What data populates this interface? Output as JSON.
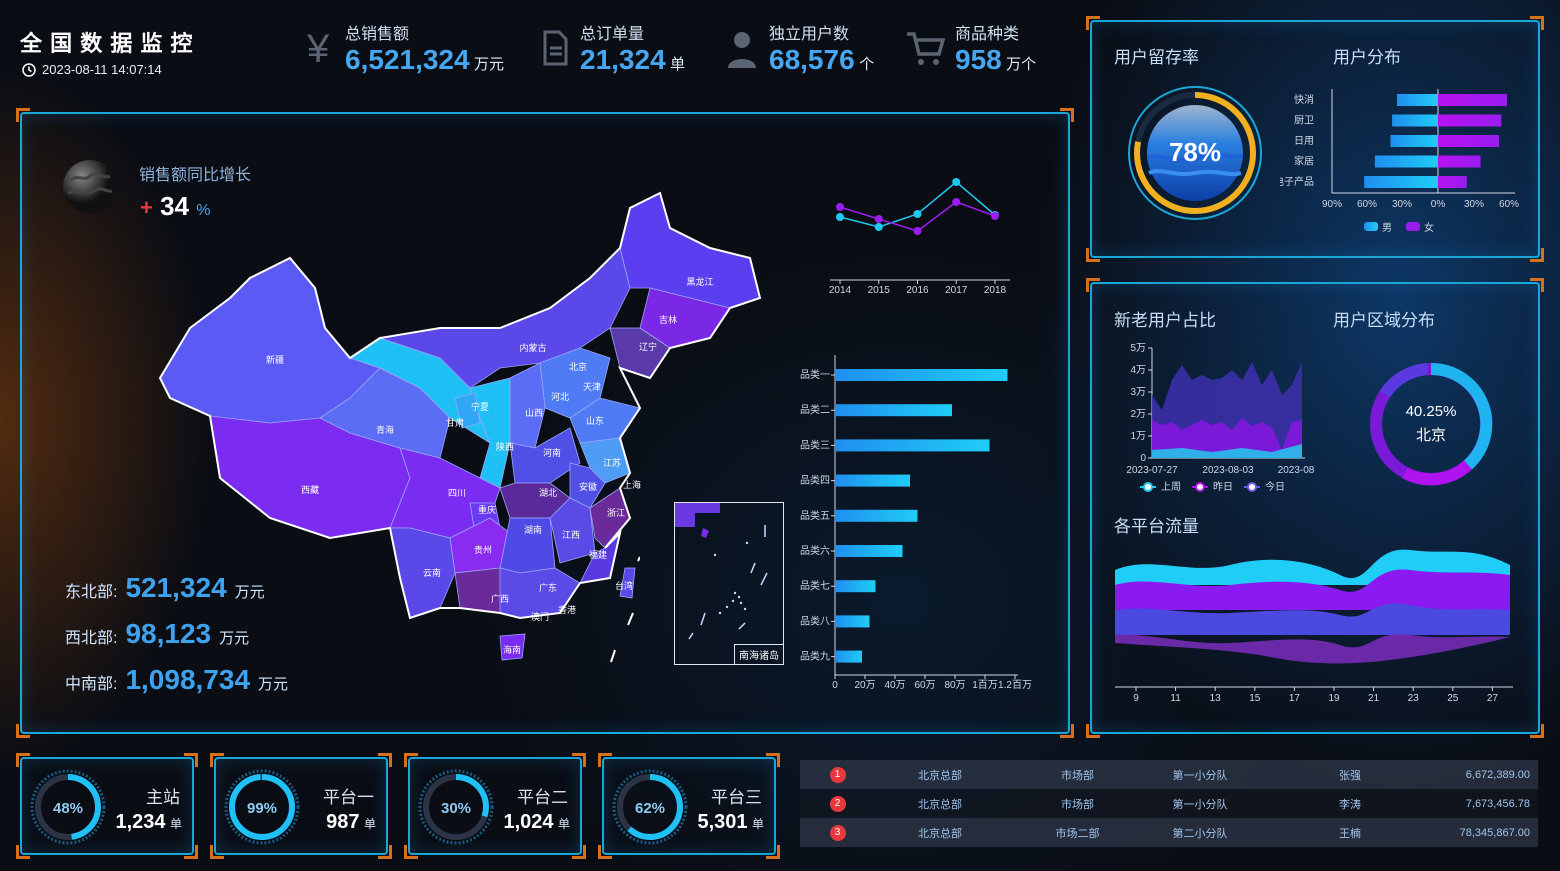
{
  "header": {
    "title": "全 国 数 据 监 控",
    "datetime": "2023-08-11 14:07:14"
  },
  "kpis": [
    {
      "label": "总销售额",
      "value": "6,521,324",
      "unit": "万元",
      "icon": "yen-icon"
    },
    {
      "label": "总订单量",
      "value": "21,324",
      "unit": "单",
      "icon": "document-icon"
    },
    {
      "label": "独立用户数",
      "value": "68,576",
      "unit": "个",
      "icon": "user-icon"
    },
    {
      "label": "商品种类",
      "value": "958",
      "unit": "万个",
      "icon": "cart-icon"
    }
  ],
  "map_panel": {
    "growth_label": "销售额同比增长",
    "growth_sign": "+",
    "growth_value": "34",
    "growth_unit": "%",
    "regions": [
      {
        "label": "东北部:",
        "value": "521,324",
        "unit": "万元"
      },
      {
        "label": "西北部:",
        "value": "98,123",
        "unit": "万元"
      },
      {
        "label": "中南部:",
        "value": "1,098,734",
        "unit": "万元"
      }
    ],
    "provinces": [
      "新疆",
      "西藏",
      "青海",
      "甘肃",
      "宁夏",
      "陕西",
      "内蒙古",
      "黑龙江",
      "吉林",
      "辽宁",
      "北京",
      "天津",
      "河北",
      "山西",
      "山东",
      "河南",
      "江苏",
      "上海",
      "安徽",
      "湖北",
      "四川",
      "重庆",
      "贵州",
      "湖南",
      "江西",
      "浙江",
      "福建",
      "云南",
      "广西",
      "广东",
      "香港",
      "澳门",
      "台湾",
      "海南"
    ],
    "inset_label": "南海诸岛"
  },
  "line_chart": {
    "type": "line",
    "x": [
      "2014",
      "2015",
      "2016",
      "2017",
      "2018"
    ],
    "series": [
      {
        "values": [
          212,
          222,
          209,
          177,
          210
        ],
        "color": "#1ec8f0"
      },
      {
        "values": [
          202,
          214,
          226,
          197,
          211
        ],
        "color": "#9b1df0"
      }
    ]
  },
  "bar_chart": {
    "type": "bar",
    "categories": [
      "品类一",
      "品类二",
      "品类三",
      "品类四",
      "品类五",
      "品类六",
      "品类七",
      "品类八",
      "品类九"
    ],
    "values": [
      1150000,
      780000,
      1030000,
      500000,
      550000,
      450000,
      270000,
      230000,
      180000
    ],
    "xticks": [
      "0",
      "20万",
      "40万",
      "60万",
      "80万",
      "1百万",
      "1.2百万"
    ],
    "xmax": 1200000
  },
  "retention": {
    "title": "用户留存率",
    "value": "78%",
    "fraction": 0.78
  },
  "user_dist": {
    "title": "用户分布",
    "type": "bar",
    "categories": [
      "快消",
      "厨卫",
      "日用",
      "家居",
      "电子产品"
    ],
    "male": [
      50,
      56,
      58,
      77,
      90
    ],
    "female": [
      60,
      55,
      53,
      37,
      25
    ],
    "xticks": [
      "90%",
      "60%",
      "30%",
      "0%",
      "30%",
      "60%"
    ],
    "legend": [
      "男",
      "女"
    ]
  },
  "new_old": {
    "title": "新老用户占比",
    "type": "area",
    "yticks": [
      "0",
      "1万",
      "2万",
      "3万",
      "4万",
      "5万"
    ],
    "xticks": [
      "2023-07-27",
      "2023-08-03",
      "2023-08"
    ],
    "legend": [
      "上周",
      "昨日",
      "今日"
    ]
  },
  "region_dist": {
    "title": "用户区域分布",
    "value": "40.25%",
    "city": "北京"
  },
  "platform_flow": {
    "title": "各平台流量",
    "type": "area",
    "xticks": [
      "9",
      "11",
      "13",
      "15",
      "17",
      "19",
      "21",
      "23",
      "25",
      "27"
    ]
  },
  "gauges": [
    {
      "percent": "48%",
      "fraction": 0.48,
      "name": "主站",
      "value": "1,234",
      "unit": "单"
    },
    {
      "percent": "99%",
      "fraction": 0.99,
      "name": "平台一",
      "value": "987",
      "unit": "单"
    },
    {
      "percent": "30%",
      "fraction": 0.3,
      "name": "平台二",
      "value": "1,024",
      "unit": "单"
    },
    {
      "percent": "62%",
      "fraction": 0.62,
      "name": "平台三",
      "value": "5,301",
      "unit": "单"
    }
  ],
  "rank_table": [
    {
      "rank": "1",
      "org": "北京总部",
      "dept": "市场部",
      "team": "第一小分队",
      "person": "张强",
      "amount": "6,672,389.00"
    },
    {
      "rank": "2",
      "org": "北京总部",
      "dept": "市场部",
      "team": "第一小分队",
      "person": "李涛",
      "amount": "7,673,456.78"
    },
    {
      "rank": "3",
      "org": "北京总部",
      "dept": "市场二部",
      "team": "第二小分队",
      "person": "王楠",
      "amount": "78,345,867.00"
    }
  ]
}
